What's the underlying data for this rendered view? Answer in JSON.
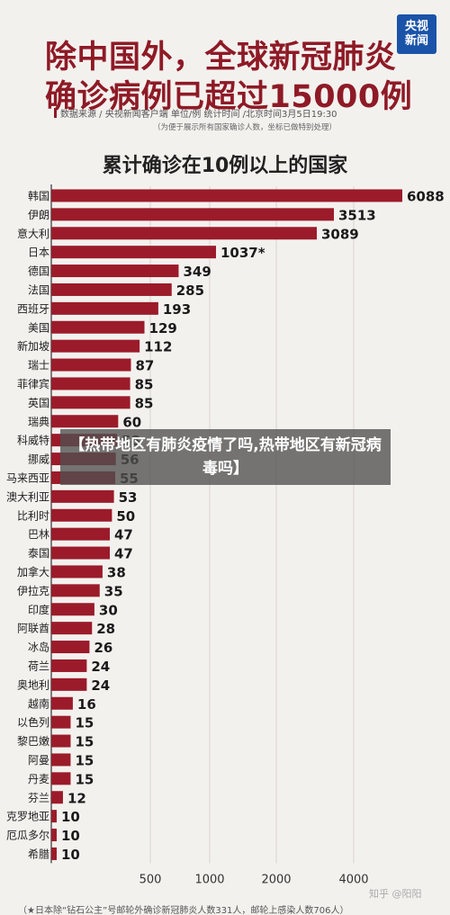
{
  "logo": {
    "line1": "央视",
    "line2": "新闻"
  },
  "title": "除中国外，全球新冠肺炎确诊病例已超过15000例",
  "source": {
    "line": "数据来源 / 央视新闻客户端  单位/例  统计时间 /北京时间3月5日19:30",
    "note": "（为便于展示所有国家确诊人数，坐标已做特别处理）"
  },
  "overlay_text": "【热带地区有肺炎疫情了吗,热带地区有新冠病毒吗】",
  "watermark": "知乎 @阳阳",
  "footnote": "（★日本除“钻石公主”号邮轮外确诊新冠肺炎人数331人，邮轮上感染人数706人）",
  "colors": {
    "bar": "#9b1b2a",
    "title": "#8e1a26",
    "grid": "#d8d4cf"
  },
  "chart_data": {
    "type": "bar",
    "orientation": "horizontal",
    "title": "累计确诊在10例以上的国家",
    "categories": [
      "韩国",
      "伊朗",
      "意大利",
      "日本",
      "德国",
      "法国",
      "西班牙",
      "美国",
      "新加坡",
      "瑞士",
      "菲律宾",
      "英国",
      "瑞典",
      "科威特",
      "挪威",
      "马来西亚",
      "澳大利亚",
      "比利时",
      "巴林",
      "泰国",
      "加拿大",
      "伊拉克",
      "印度",
      "阿联酋",
      "冰岛",
      "荷兰",
      "奥地利",
      "越南",
      "以色列",
      "黎巴嫩",
      "阿曼",
      "丹麦",
      "芬兰",
      "克罗地亚",
      "厄瓜多尔",
      "希腊"
    ],
    "values": [
      6088,
      3513,
      3089,
      1037,
      349,
      285,
      193,
      129,
      112,
      87,
      85,
      85,
      60,
      58,
      56,
      55,
      53,
      50,
      47,
      47,
      38,
      35,
      30,
      28,
      26,
      24,
      24,
      16,
      15,
      15,
      15,
      15,
      12,
      10,
      10,
      10
    ],
    "value_labels": [
      "6088",
      "3513",
      "3089",
      "1037*",
      "349",
      "285",
      "193",
      "129",
      "112",
      "87",
      "85",
      "85",
      "60",
      "58",
      "56",
      "55",
      "53",
      "50",
      "47",
      "47",
      "38",
      "35",
      "30",
      "28",
      "26",
      "24",
      "24",
      "16",
      "15",
      "15",
      "15",
      "15",
      "12",
      "10",
      "10",
      "10"
    ],
    "x_ticks": [
      500,
      1000,
      2000,
      4000
    ],
    "x_tick_labels": [
      "500",
      "1000",
      "2000",
      "4000"
    ],
    "x_scale": "non-linear (specially adjusted)",
    "grid": true
  }
}
